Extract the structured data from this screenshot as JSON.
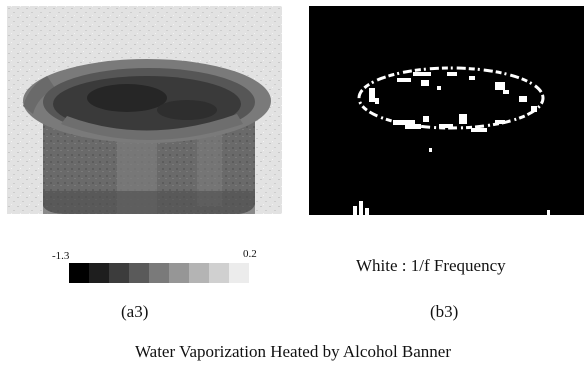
{
  "scale": {
    "min_label": "-1.3",
    "max_label": "0.2",
    "colors": [
      "#000000",
      "#1e1e1e",
      "#3c3c3c",
      "#5a5a5a",
      "#7a7a7a",
      "#969696",
      "#b4b4b4",
      "#d0d0d0",
      "#ececec"
    ]
  },
  "legend_text": "White : 1/f Frequency",
  "labels": {
    "a": "(a3)",
    "b": "(b3)"
  },
  "caption": "Water Vaporization Heated by Alcohol Banner"
}
